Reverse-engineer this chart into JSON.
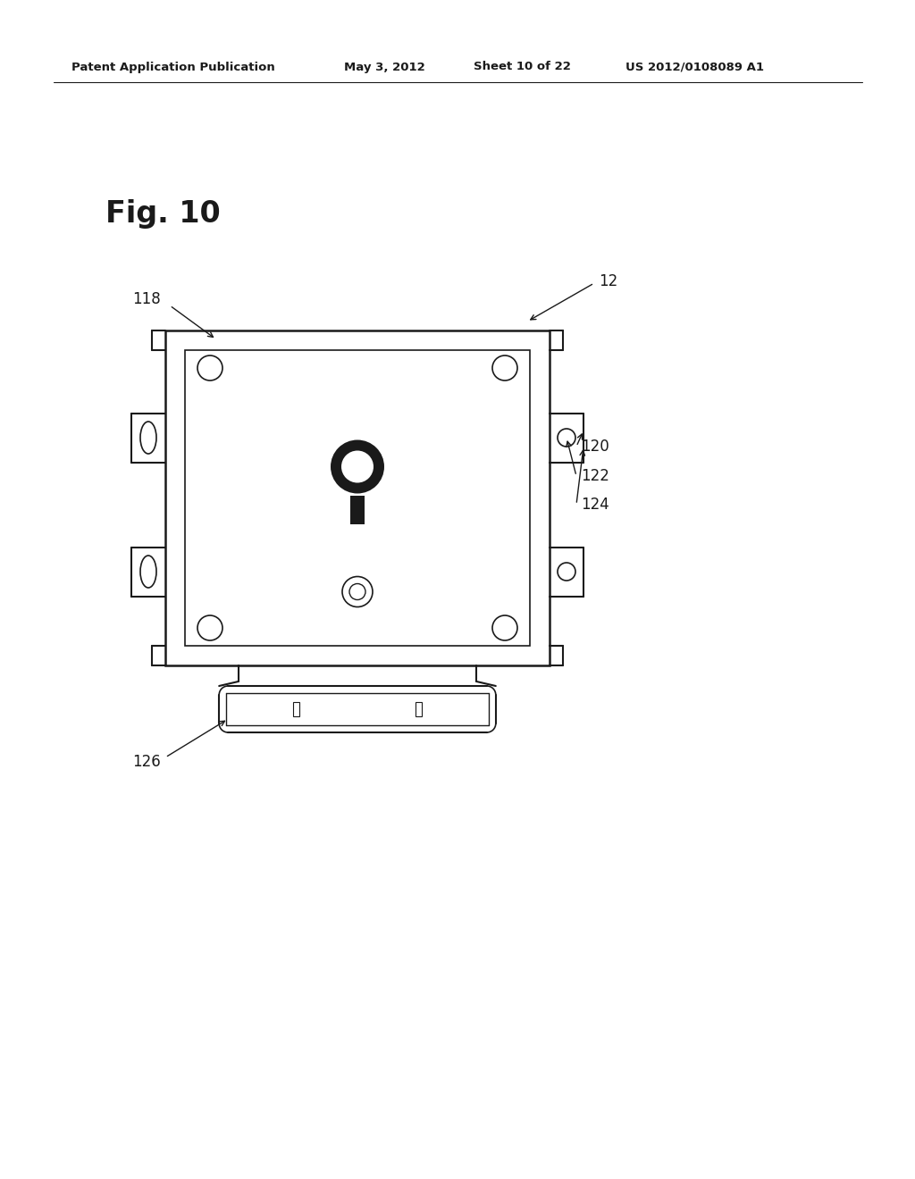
{
  "bg_color": "#ffffff",
  "line_color": "#1a1a1a",
  "header_text": "Patent Application Publication",
  "header_date": "May 3, 2012",
  "header_sheet": "Sheet 10 of 22",
  "header_patent": "US 2012/0108089 A1",
  "fig_label": "Fig. 10",
  "label_12": "12",
  "label_118": "118",
  "label_120": "120",
  "label_122": "122",
  "label_124": "124",
  "label_126": "126"
}
